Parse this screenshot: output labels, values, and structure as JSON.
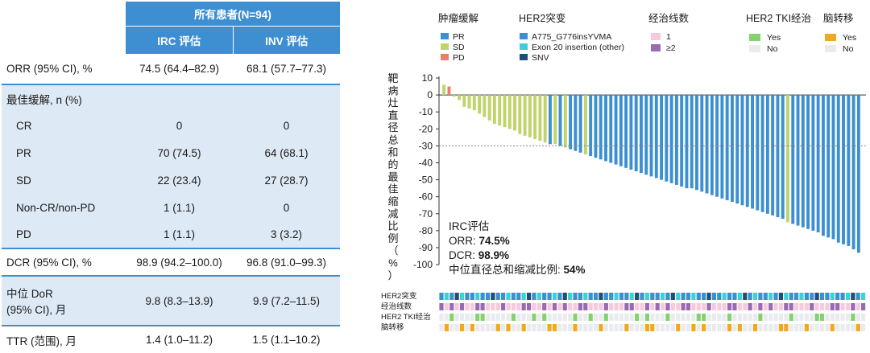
{
  "table": {
    "header": {
      "group": "所有患者(N=94)",
      "col2": "IRC 评估",
      "col3": "INV 评估"
    },
    "rows": [
      {
        "label": "ORR (95% CI), %",
        "irc": "74.5 (64.4–82.9)",
        "inv": "68.1 (57.7–77.3)"
      },
      {
        "label": "最佳缓解, n (%)",
        "irc": "",
        "inv": ""
      },
      {
        "label": "CR",
        "irc": "0",
        "inv": "0"
      },
      {
        "label": "PR",
        "irc": "70 (74.5)",
        "inv": "64 (68.1)"
      },
      {
        "label": "SD",
        "irc": "22 (23.4)",
        "inv": "27 (28.7)"
      },
      {
        "label": "Non-CR/non-PD",
        "irc": "1 (1.1)",
        "inv": "0"
      },
      {
        "label": "PD",
        "irc": "1 (1.1)",
        "inv": "3 (3.2)"
      },
      {
        "label": "DCR (95% CI), %",
        "irc": "98.9 (94.2–100.0)",
        "inv": "96.8 (91.0–99.3)"
      },
      {
        "label": "中位 DoR",
        "label2": "(95% CI), 月",
        "irc": "9.8 (8.3–13.9)",
        "inv": "9.9 (7.2–11.5)"
      },
      {
        "label": "TTR (范围), 月",
        "irc": "1.4 (1.0–11.2)",
        "inv": "1.5 (1.1–10.2)"
      }
    ]
  },
  "legend": {
    "response": {
      "title": "肿瘤缓解",
      "items": [
        {
          "label": "PR",
          "color": "#3c8fd0"
        },
        {
          "label": "SD",
          "color": "#bfd46b"
        },
        {
          "label": "PD",
          "color": "#ee7b73"
        }
      ]
    },
    "her2": {
      "title": "HER2突变",
      "items": [
        {
          "label": "A775_G776insYVMA",
          "color": "#3c8fd0"
        },
        {
          "label": "Exon 20 insertion (other)",
          "color": "#3dd0d9"
        },
        {
          "label": "SNV",
          "color": "#1f4e79"
        }
      ]
    },
    "lines": {
      "title": "经治线数",
      "items": [
        {
          "label": "1",
          "color": "#f6c9dc"
        },
        {
          "label": "≥2",
          "color": "#9a69b3"
        }
      ]
    },
    "tki": {
      "title": "HER2 TKI经治",
      "items": [
        {
          "label": "Yes",
          "color": "#86d16f"
        },
        {
          "label": "No",
          "color": "#e9ebee"
        }
      ]
    },
    "brain": {
      "title": "脑转移",
      "items": [
        {
          "label": "Yes",
          "color": "#f0a81e"
        },
        {
          "label": "No",
          "color": "#e9ebee"
        }
      ]
    }
  },
  "annotation": {
    "line1": "IRC评估",
    "line2_prefix": "ORR: ",
    "line2_value": "74.5%",
    "line3_prefix": "DCR: ",
    "line3_value": "98.9%",
    "line4_prefix": "中位直径总和缩减比例: ",
    "line4_value": "54%"
  },
  "tracks": {
    "labels": [
      "HER2突变",
      "经治线数",
      "HER2 TKI经治",
      "脑转移"
    ]
  },
  "chart_data": {
    "type": "bar",
    "ylabel": "靶病灶直径总和的最佳缩减比例（%）",
    "ylim": [
      -100,
      10
    ],
    "yticks": [
      10,
      0,
      -10,
      -20,
      -30,
      -40,
      -50,
      -60,
      -70,
      -80,
      -90,
      -100
    ],
    "reference_line": -30,
    "colors": {
      "PR": "#3c8fd0",
      "SD": "#bfd46b",
      "PD": "#ee7b73"
    },
    "bars": [
      {
        "value": 6,
        "response": "SD"
      },
      {
        "value": 5,
        "response": "PD"
      },
      {
        "value": -1,
        "response": "SD"
      },
      {
        "value": -3,
        "response": "SD"
      },
      {
        "value": -7,
        "response": "SD"
      },
      {
        "value": -8,
        "response": "SD"
      },
      {
        "value": -9,
        "response": "SD"
      },
      {
        "value": -11,
        "response": "SD"
      },
      {
        "value": -13,
        "response": "SD"
      },
      {
        "value": -15,
        "response": "SD"
      },
      {
        "value": -17,
        "response": "SD"
      },
      {
        "value": -18,
        "response": "SD"
      },
      {
        "value": -19,
        "response": "SD"
      },
      {
        "value": -20,
        "response": "SD"
      },
      {
        "value": -21,
        "response": "SD"
      },
      {
        "value": -23,
        "response": "SD"
      },
      {
        "value": -24,
        "response": "SD"
      },
      {
        "value": -25,
        "response": "SD"
      },
      {
        "value": -26,
        "response": "SD"
      },
      {
        "value": -27,
        "response": "SD"
      },
      {
        "value": -28,
        "response": "SD"
      },
      {
        "value": -29,
        "response": "PR"
      },
      {
        "value": -29,
        "response": "SD"
      },
      {
        "value": -30,
        "response": "PR"
      },
      {
        "value": -31,
        "response": "SD"
      },
      {
        "value": -32,
        "response": "PR"
      },
      {
        "value": -33,
        "response": "PR"
      },
      {
        "value": -34,
        "response": "PR"
      },
      {
        "value": -35,
        "response": "SD"
      },
      {
        "value": -36,
        "response": "PR"
      },
      {
        "value": -37,
        "response": "PR"
      },
      {
        "value": -38,
        "response": "PR"
      },
      {
        "value": -39,
        "response": "PR"
      },
      {
        "value": -40,
        "response": "PR"
      },
      {
        "value": -41,
        "response": "PR"
      },
      {
        "value": -42,
        "response": "PR"
      },
      {
        "value": -43,
        "response": "PR"
      },
      {
        "value": -44,
        "response": "PR"
      },
      {
        "value": -45,
        "response": "PR"
      },
      {
        "value": -46,
        "response": "PR"
      },
      {
        "value": -47,
        "response": "PR"
      },
      {
        "value": -48,
        "response": "PR"
      },
      {
        "value": -49,
        "response": "PR"
      },
      {
        "value": -50,
        "response": "PR"
      },
      {
        "value": -51,
        "response": "PR"
      },
      {
        "value": -52,
        "response": "PR"
      },
      {
        "value": -53,
        "response": "PR"
      },
      {
        "value": -54,
        "response": "PR"
      },
      {
        "value": -55,
        "response": "PR"
      },
      {
        "value": -55,
        "response": "PR"
      },
      {
        "value": -56,
        "response": "PR"
      },
      {
        "value": -57,
        "response": "PR"
      },
      {
        "value": -58,
        "response": "PR"
      },
      {
        "value": -59,
        "response": "PR"
      },
      {
        "value": -60,
        "response": "PR"
      },
      {
        "value": -61,
        "response": "PR"
      },
      {
        "value": -62,
        "response": "PR"
      },
      {
        "value": -63,
        "response": "PR"
      },
      {
        "value": -64,
        "response": "PR"
      },
      {
        "value": -65,
        "response": "PR"
      },
      {
        "value": -66,
        "response": "PR"
      },
      {
        "value": -67,
        "response": "PR"
      },
      {
        "value": -68,
        "response": "PR"
      },
      {
        "value": -69,
        "response": "PR"
      },
      {
        "value": -70,
        "response": "PR"
      },
      {
        "value": -71,
        "response": "PR"
      },
      {
        "value": -72,
        "response": "PR"
      },
      {
        "value": -73,
        "response": "PR"
      },
      {
        "value": -75,
        "response": "SD"
      },
      {
        "value": -76,
        "response": "PR"
      },
      {
        "value": -77,
        "response": "PR"
      },
      {
        "value": -78,
        "response": "PR"
      },
      {
        "value": -79,
        "response": "PR"
      },
      {
        "value": -80,
        "response": "PR"
      },
      {
        "value": -81,
        "response": "PR"
      },
      {
        "value": -83,
        "response": "PR"
      },
      {
        "value": -84,
        "response": "PR"
      },
      {
        "value": -85,
        "response": "PR"
      },
      {
        "value": -87,
        "response": "PR"
      },
      {
        "value": -88,
        "response": "PR"
      },
      {
        "value": -89,
        "response": "PR"
      },
      {
        "value": -91,
        "response": "PR"
      },
      {
        "value": -93,
        "response": "PR"
      }
    ]
  }
}
